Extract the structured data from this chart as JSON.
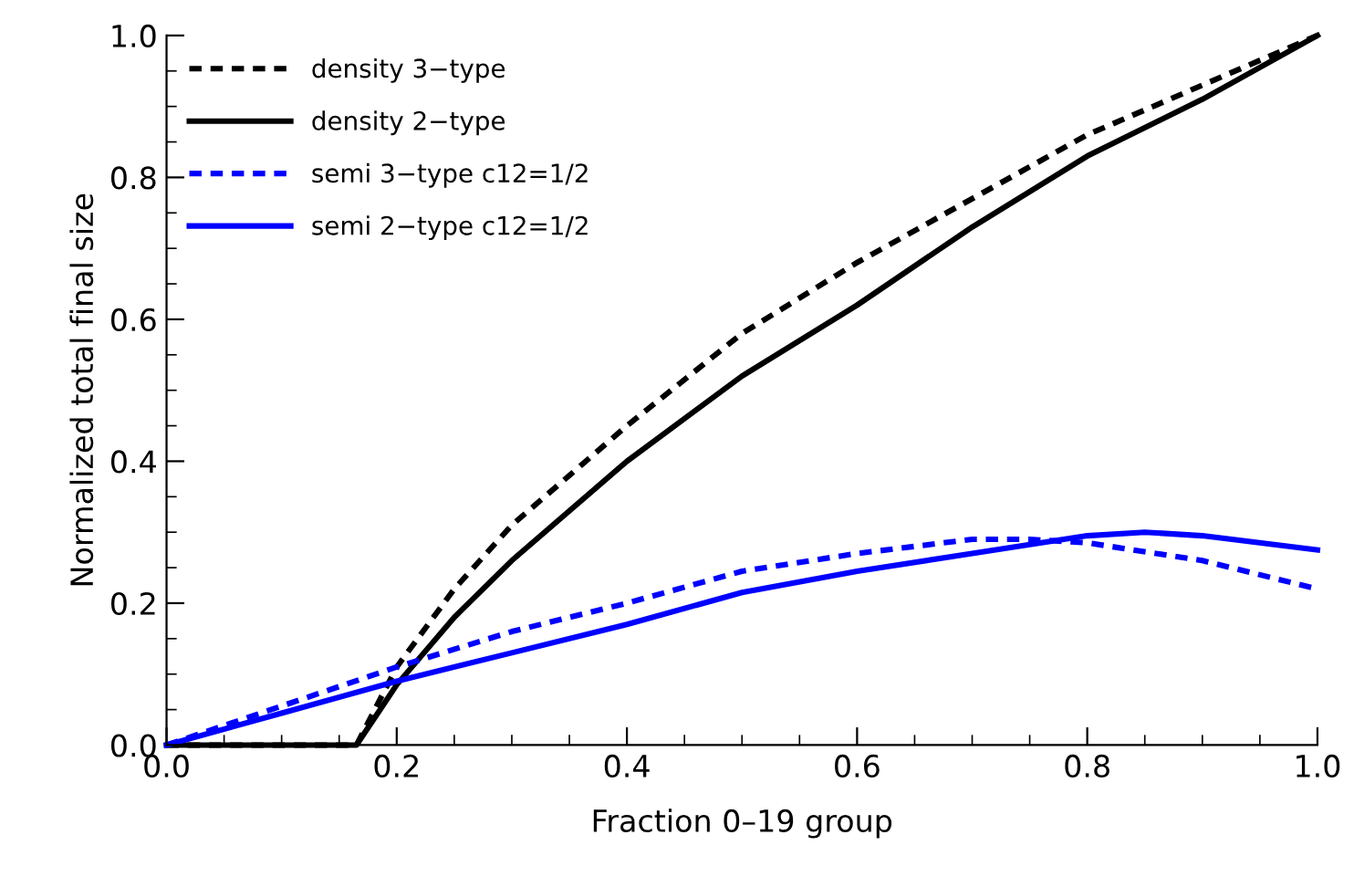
{
  "chart_data": {
    "type": "line",
    "xlabel": "Fraction 0–19 group",
    "ylabel": "Normalized total final size",
    "xlim": [
      0,
      1
    ],
    "ylim": [
      0,
      1
    ],
    "xticks": [
      {
        "value": 0,
        "label": "0.0"
      },
      0.2,
      0.4,
      0.6,
      0.8,
      {
        "value": 1,
        "label": "1.0"
      }
    ],
    "yticks": [
      {
        "value": 0,
        "label": "0.0"
      },
      0.2,
      0.4,
      0.6,
      0.8,
      {
        "value": 1,
        "label": "1.0"
      }
    ],
    "grid": false,
    "legend": "top left",
    "marker": "none",
    "series": [
      {
        "name": "density 3−type",
        "color": "#000000",
        "line_style": "dashed",
        "x": [
          0,
          0.165,
          0.2,
          0.25,
          0.3,
          0.4,
          0.5,
          0.6,
          0.7,
          0.8,
          0.9,
          1.0
        ],
        "values": [
          0,
          0,
          0.11,
          0.22,
          0.31,
          0.45,
          0.58,
          0.68,
          0.77,
          0.86,
          0.93,
          1.0
        ]
      },
      {
        "name": "density 2−type",
        "color": "#000000",
        "line_style": "solid",
        "x": [
          0,
          0.165,
          0.2,
          0.25,
          0.3,
          0.4,
          0.5,
          0.6,
          0.7,
          0.8,
          0.9,
          1.0
        ],
        "values": [
          0,
          0,
          0.085,
          0.18,
          0.26,
          0.4,
          0.52,
          0.62,
          0.73,
          0.83,
          0.91,
          1.0
        ]
      },
      {
        "name": "semi 3−type c12=1/2",
        "color": "#0000ff",
        "line_style": "dashed",
        "x": [
          0,
          0.1,
          0.2,
          0.3,
          0.4,
          0.5,
          0.6,
          0.7,
          0.75,
          0.8,
          0.9,
          1.0
        ],
        "values": [
          0,
          0.055,
          0.11,
          0.16,
          0.2,
          0.245,
          0.27,
          0.29,
          0.29,
          0.285,
          0.26,
          0.22
        ]
      },
      {
        "name": "semi 2−type c12=1/2",
        "color": "#0000ff",
        "line_style": "solid",
        "x": [
          0,
          0.1,
          0.2,
          0.3,
          0.4,
          0.5,
          0.6,
          0.7,
          0.8,
          0.85,
          0.9,
          1.0
        ],
        "values": [
          0,
          0.045,
          0.09,
          0.13,
          0.17,
          0.215,
          0.245,
          0.27,
          0.295,
          0.3,
          0.295,
          0.275
        ]
      }
    ]
  }
}
